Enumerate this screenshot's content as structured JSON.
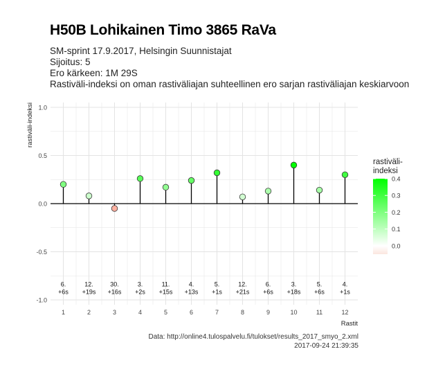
{
  "header": {
    "title": "H50B Lohikainen Timo 3865 RaVa",
    "subtitle_lines": [
      "SM-sprint 17.9.2017, Helsingin Suunnistajat",
      "Sijoitus: 5",
      "Ero kärkeen: 1M 29S",
      "Rastiväli-indeksi on oman rastiväliajan suhteellinen ero sarjan rastiväliajan keskiarvoon"
    ]
  },
  "caption": {
    "source": "Data: http://online4.tulospalvelu.fi/tulokset/results_2017_smyo_2.xml",
    "timestamp": "2017-09-24 21:39:35"
  },
  "chart_data": {
    "type": "scatter",
    "style": "lollipop",
    "xlabel": "Rastit",
    "ylabel": "rastiväli-indeksi",
    "x": [
      1,
      2,
      3,
      4,
      5,
      6,
      7,
      8,
      9,
      10,
      11,
      12
    ],
    "values": [
      0.2,
      0.08,
      -0.05,
      0.26,
      0.17,
      0.24,
      0.32,
      0.07,
      0.13,
      0.4,
      0.14,
      0.3
    ],
    "rank_labels": [
      "6.",
      "12.",
      "30.",
      "3.",
      "11.",
      "4.",
      "5.",
      "12.",
      "6.",
      "3.",
      "5.",
      "4."
    ],
    "diff_labels": [
      "+6s",
      "+19s",
      "+16s",
      "+2s",
      "+15s",
      "+13s",
      "+1s",
      "+21s",
      "+6s",
      "+18s",
      "+6s",
      "+1s"
    ],
    "xlim": [
      0.5,
      12.5
    ],
    "ylim": [
      -1.05,
      1.05
    ],
    "y_ticks": [
      -1.0,
      -0.5,
      0.0,
      0.5,
      1.0
    ],
    "y_tick_labels": [
      "-1.0",
      "-0.5",
      "0.0",
      "0.5",
      "1.0"
    ],
    "x_tick_labels": [
      "1",
      "2",
      "3",
      "4",
      "5",
      "6",
      "7",
      "8",
      "9",
      "10",
      "11",
      "12"
    ],
    "grid": true,
    "zero_line": true,
    "legend": {
      "title_lines": [
        "rastiväli-",
        "indeksi"
      ],
      "placement": "right",
      "ticks": [
        0.4,
        0.3,
        0.2,
        0.1,
        0.0
      ],
      "tick_labels": [
        "0.4",
        "0.3",
        "0.2",
        "0.1",
        "0.0"
      ],
      "range": [
        -0.05,
        0.4
      ]
    },
    "colors": {
      "positive_high": "#00ff00",
      "neutral": "#ffffff",
      "negative": "#ffb0a0",
      "grid": "#e3e3e3",
      "axis_line": "#000000"
    }
  }
}
